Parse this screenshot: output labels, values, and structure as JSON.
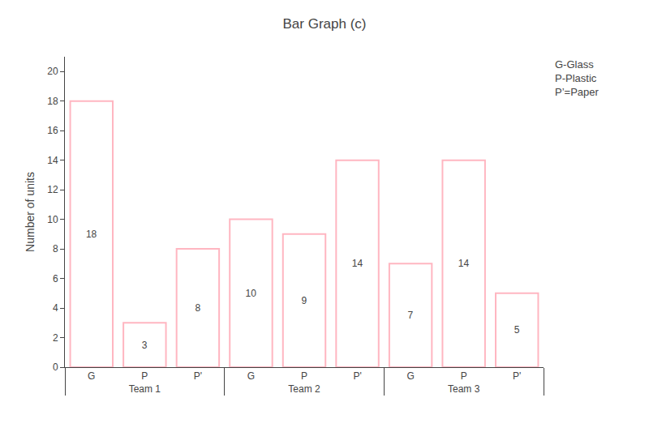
{
  "chart_data": {
    "type": "bar",
    "title": "Bar Graph (c)",
    "ylabel": "Number of units",
    "annotations": [
      "G-Glass",
      "P-Plastic",
      "P’=Paper"
    ],
    "categories": [
      "Team 1",
      "Team 2",
      "Team 3"
    ],
    "series": [
      {
        "name": "G",
        "values": [
          18,
          10,
          7
        ]
      },
      {
        "name": "P",
        "values": [
          3,
          9,
          14
        ]
      },
      {
        "name": "P'",
        "values": [
          8,
          14,
          5
        ]
      }
    ],
    "color": "#FFB6C1",
    "ylim": [
      0,
      21
    ],
    "yticks": [
      0,
      2,
      4,
      6,
      8,
      10,
      12,
      14,
      16,
      18,
      20
    ],
    "data_labels": true,
    "grid": false
  }
}
